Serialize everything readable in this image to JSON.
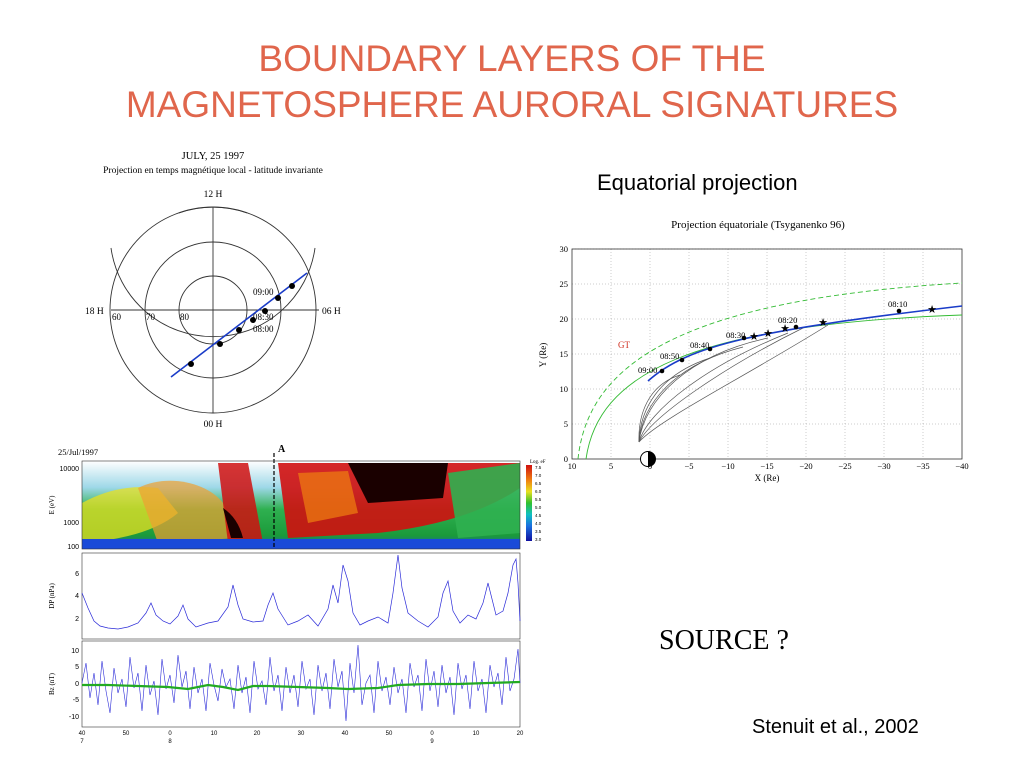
{
  "slide": {
    "title_line1": "BOUNDARY LAYERS OF THE",
    "title_line2": "MAGNETOSPHERE AURORAL SIGNATURES",
    "equatorial_label": "Equatorial projection",
    "source_text": "SOURCE ?",
    "citation": "Stenuit et al., 2002"
  },
  "polar_plot": {
    "date": "JULY, 25 1997",
    "subtitle": "Projection en temps magnétique local - latitude invariante",
    "labels": {
      "top": "12 H",
      "bottom": "00 H",
      "left": "18 H",
      "right": "06 H"
    },
    "lat_labels": [
      "60",
      "70",
      "80"
    ],
    "times": [
      "09:00",
      "08:30",
      "08:00"
    ]
  },
  "equatorial_plot": {
    "title": "Projection équatoriale (Tsyganenko 96)",
    "ylabel": "Y (Re)",
    "xlabel": "X (Re)",
    "y_ticks": [
      "30",
      "25",
      "20",
      "15",
      "10",
      "5",
      "0"
    ],
    "x_ticks": [
      "10",
      "5",
      "0",
      "−5",
      "−10",
      "−15",
      "−20",
      "−25",
      "−30",
      "−35",
      "−40"
    ],
    "time_labels": [
      "08:10",
      "08:20",
      "08:30",
      "08:40",
      "08:50",
      "09:00"
    ],
    "legend": "GT"
  },
  "spectrogram": {
    "date": "25/Jul/1997",
    "marker": "A",
    "ylabel": "E (eV)",
    "y_ticks": [
      "10000",
      "1000",
      "100"
    ],
    "cbar_title": "Log. eF",
    "cbar_ticks": [
      "7.5",
      "7.0",
      "6.5",
      "6.0",
      "5.5",
      "5.0",
      "4.5",
      "4.0",
      "3.5",
      "3.0"
    ]
  },
  "dp_panel": {
    "ylabel": "DP (nPa)",
    "y_ticks": [
      "6",
      "4",
      "2"
    ]
  },
  "bz_panel": {
    "ylabel": "Bz (nT)",
    "y_ticks": [
      "10",
      "5",
      "0",
      "-5",
      "-10"
    ],
    "x_ticks": [
      "40",
      "50",
      "0",
      "10",
      "20",
      "30",
      "40",
      "50",
      "0",
      "10",
      "20"
    ],
    "hour_labels": [
      "7",
      "8",
      "9"
    ]
  },
  "colors": {
    "title": "#e0664c",
    "trajectory": "#1a3cc8",
    "field_model": "#33bb33",
    "trace": "#2a2ad8",
    "smooth": "#22aa22"
  }
}
